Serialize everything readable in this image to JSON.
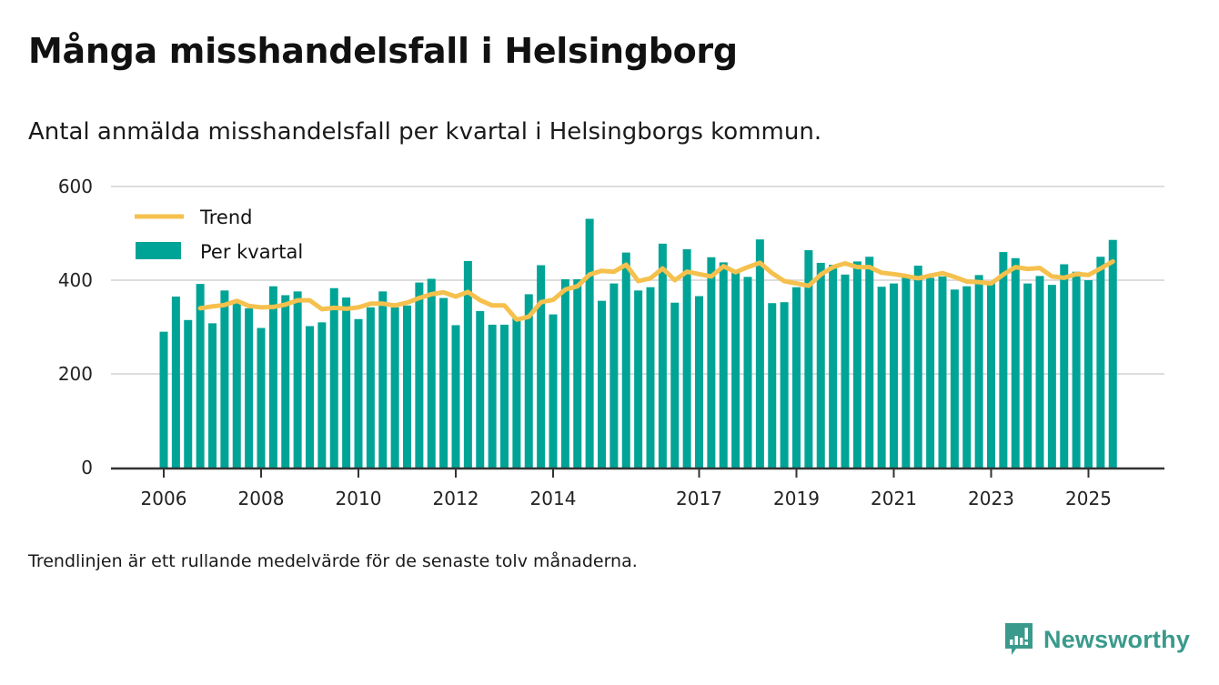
{
  "header": {
    "title": "Många misshandelsfall i Helsingborg",
    "subtitle": "Antal anmälda misshandelsfall per kvartal i Helsingborgs kommun."
  },
  "footer": {
    "note": "Trendlinjen är ett rullande medelvärde för de senaste tolv månaderna.",
    "brand": "Newsworthy",
    "brand_icon": "bar-chart-speech-bubble-icon"
  },
  "colors": {
    "bars": "#00a497",
    "trend": "#f5c04d",
    "grid": "#dddddd",
    "axis": "#333333",
    "brand": "#3a9a8c"
  },
  "chart_data": {
    "type": "bar",
    "title": "Många misshandelsfall i Helsingborg",
    "subtitle": "Antal anmälda misshandelsfall per kvartal i Helsingborgs kommun.",
    "xlabel": "",
    "ylabel": "",
    "ylim": [
      0,
      600
    ],
    "yticks": [
      0,
      200,
      400,
      600
    ],
    "grid": true,
    "legend_position": "top-left",
    "start_period": "2006Q1",
    "end_period": "2025Q3",
    "xticks": [
      {
        "label": "2006",
        "index": 0
      },
      {
        "label": "2008",
        "index": 8
      },
      {
        "label": "2010",
        "index": 16
      },
      {
        "label": "2012",
        "index": 24
      },
      {
        "label": "2014",
        "index": 32
      },
      {
        "label": "2017",
        "index": 44
      },
      {
        "label": "2019",
        "index": 52
      },
      {
        "label": "2021",
        "index": 60
      },
      {
        "label": "2023",
        "index": 68
      },
      {
        "label": "2025",
        "index": 76
      }
    ],
    "series": [
      {
        "name": "Trend",
        "type": "line",
        "start_index": 3,
        "values": [
          340,
          344,
          347,
          356,
          345,
          342,
          343,
          348,
          357,
          357,
          338,
          341,
          339,
          342,
          350,
          350,
          346,
          352,
          362,
          370,
          374,
          365,
          375,
          357,
          346,
          346,
          316,
          322,
          353,
          358,
          380,
          387,
          412,
          420,
          418,
          433,
          398,
          404,
          425,
          400,
          418,
          413,
          408,
          430,
          417,
          428,
          437,
          415,
          398,
          393,
          388,
          412,
          428,
          436,
          428,
          428,
          416,
          413,
          409,
          404,
          410,
          415,
          407,
          397,
          396,
          393,
          412,
          428,
          424,
          426,
          408,
          405,
          413,
          411,
          425,
          440
        ]
      },
      {
        "name": "Per kvartal",
        "type": "bar",
        "values": [
          290,
          365,
          315,
          392,
          308,
          378,
          355,
          340,
          298,
          387,
          368,
          376,
          302,
          310,
          383,
          363,
          317,
          342,
          376,
          342,
          346,
          395,
          403,
          362,
          304,
          441,
          334,
          305,
          305,
          320,
          370,
          432,
          327,
          402,
          402,
          531,
          356,
          393,
          459,
          378,
          385,
          478,
          352,
          466,
          366,
          449,
          438,
          420,
          407,
          487,
          351,
          353,
          385,
          464,
          437,
          433,
          412,
          440,
          450,
          386,
          393,
          408,
          431,
          405,
          408,
          380,
          387,
          411,
          396,
          460,
          447,
          393,
          409,
          390,
          434,
          418,
          400,
          450,
          486
        ]
      }
    ]
  }
}
